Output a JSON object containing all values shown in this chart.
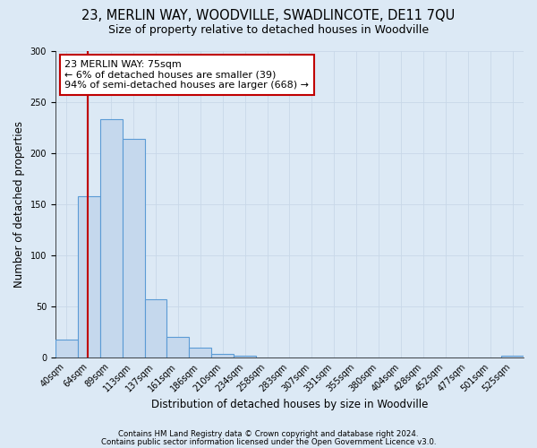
{
  "title": "23, MERLIN WAY, WOODVILLE, SWADLINCOTE, DE11 7QU",
  "subtitle": "Size of property relative to detached houses in Woodville",
  "xlabel": "Distribution of detached houses by size in Woodville",
  "ylabel": "Number of detached properties",
  "bin_labels": [
    "40sqm",
    "64sqm",
    "89sqm",
    "113sqm",
    "137sqm",
    "161sqm",
    "186sqm",
    "210sqm",
    "234sqm",
    "258sqm",
    "283sqm",
    "307sqm",
    "331sqm",
    "355sqm",
    "380sqm",
    "404sqm",
    "428sqm",
    "452sqm",
    "477sqm",
    "501sqm",
    "525sqm"
  ],
  "bar_values": [
    18,
    158,
    233,
    214,
    57,
    20,
    10,
    4,
    2,
    0,
    0,
    0,
    0,
    0,
    0,
    0,
    0,
    0,
    0,
    0,
    2
  ],
  "bar_color": "#c5d8ed",
  "bar_edge_color": "#5b9bd5",
  "bar_edge_width": 0.8,
  "vline_color": "#c00000",
  "ylim": [
    0,
    300
  ],
  "yticks": [
    0,
    50,
    100,
    150,
    200,
    250,
    300
  ],
  "grid_color": "#c8d8e8",
  "bg_color": "#dce9f5",
  "annotation_text": "23 MERLIN WAY: 75sqm\n← 6% of detached houses are smaller (39)\n94% of semi-detached houses are larger (668) →",
  "annotation_box_color": "#ffffff",
  "annotation_box_edge": "#c00000",
  "footer1": "Contains HM Land Registry data © Crown copyright and database right 2024.",
  "footer2": "Contains public sector information licensed under the Open Government Licence v3.0.",
  "title_fontsize": 10.5,
  "subtitle_fontsize": 9,
  "tick_fontsize": 7,
  "ylabel_fontsize": 8.5,
  "xlabel_fontsize": 8.5,
  "annot_fontsize": 8
}
